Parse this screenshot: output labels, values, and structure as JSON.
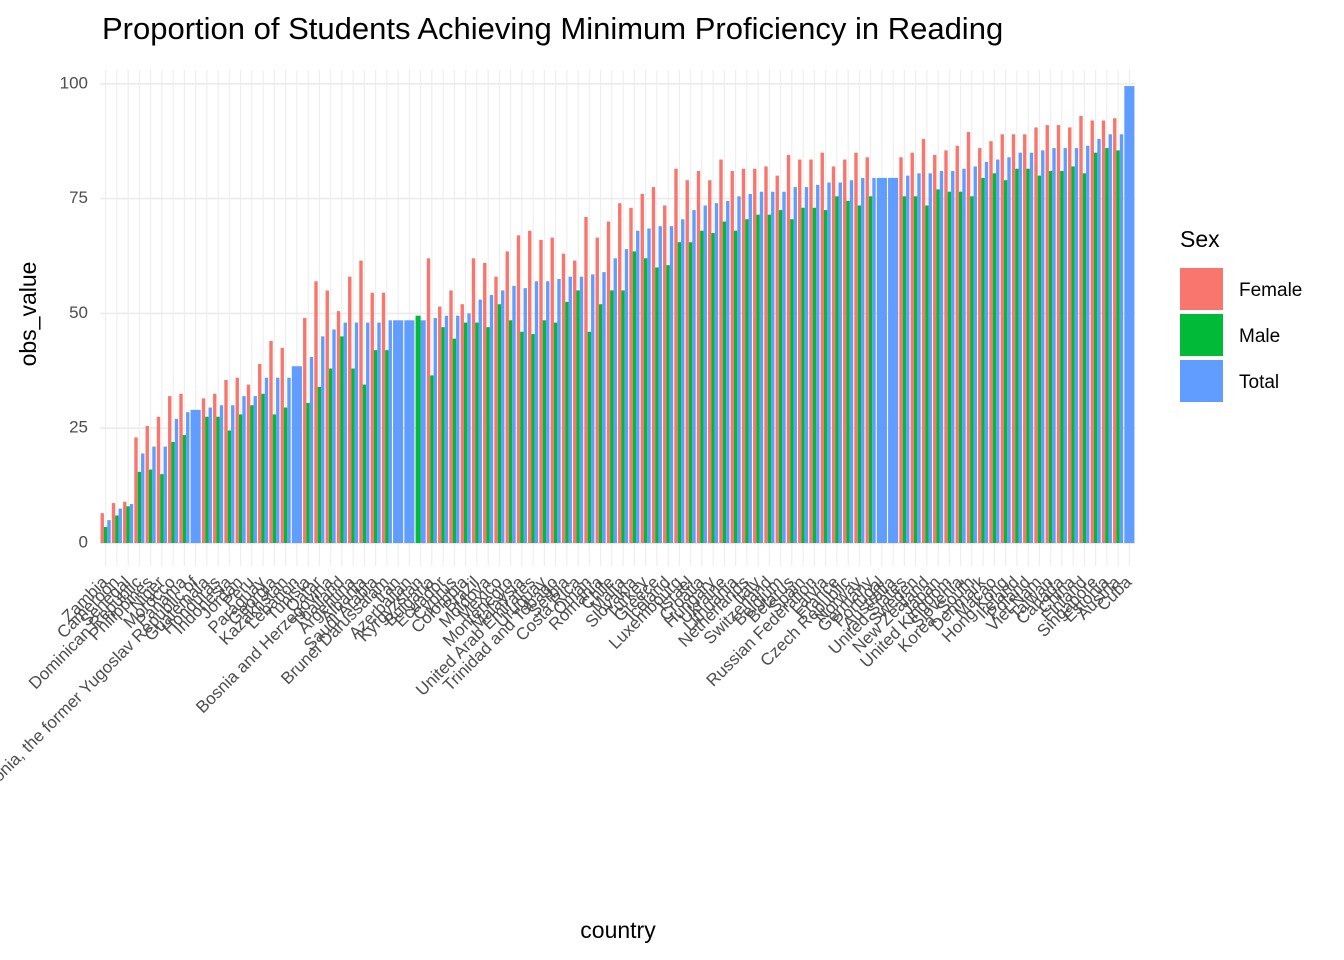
{
  "chart_data": {
    "type": "bar",
    "title": "Proportion of Students Achieving Minimum Proficiency in Reading",
    "x_label": "country",
    "y_label": "obs_value",
    "legend_title": "Sex",
    "categories": [
      "Zambia",
      "Cameroon",
      "Senegal",
      "Dominican Republic",
      "Philippines",
      "Niger",
      "Morocco",
      "Panama",
      "Macedonia, the former Yugoslav Republic of",
      "Guatemala",
      "Honduras",
      "Indonesia",
      "Jordan",
      "Peru",
      "Paraguay",
      "Georgia",
      "Kazakhstan",
      "Lebanon",
      "Tunisia",
      "Qatar",
      "Bosnia and Herzegovina",
      "Thailand",
      "Argentina",
      "Albania",
      "Saudi Arabia",
      "Brunei Darussalam",
      "Iran",
      "Azerbaijan",
      "Kyrgyzstan",
      "Bulgaria",
      "Ecuador",
      "Cyprus",
      "Colombia",
      "Brazil",
      "Moldova",
      "Mexico",
      "Montenegro",
      "Malaysia",
      "United Arab Emirates",
      "Uruguay",
      "Trinidad and Tobago",
      "Serbia",
      "Costa Rica",
      "Oman",
      "Romania",
      "Chile",
      "Malta",
      "Slovakia",
      "Turkey",
      "Greece",
      "Iceland",
      "Luxembourg",
      "Israel",
      "Croatia",
      "Hungary",
      "Ukraine",
      "Lithuania",
      "Netherlands",
      "Italy",
      "Switzerland",
      "Belgium",
      "Belarus",
      "Spain",
      "Russian Federation",
      "Latvia",
      "France",
      "Czech Republic",
      "Norway",
      "Germany",
      "Portugal",
      "Australia",
      "United States",
      "Sweden",
      "New Zealand",
      "Japan",
      "United Kingdom",
      "Slovenia",
      "Korea, South",
      "Denmark",
      "Macao",
      "Hong Kong",
      "Ireland",
      "Poland",
      "Viet Nam",
      "Taiwan",
      "Canada",
      "China",
      "Finland",
      "Singapore",
      "Estonia",
      "Austria",
      "Cuba"
    ],
    "series": [
      {
        "name": "Female",
        "color": "#F8766D",
        "values": [
          6.5,
          8.7,
          9,
          23,
          25.5,
          27.5,
          32,
          32.5,
          null,
          31.5,
          32.5,
          35.5,
          36,
          34.5,
          39,
          44,
          42.5,
          null,
          49,
          57,
          55,
          50.5,
          58,
          61.5,
          54.5,
          54.5,
          null,
          null,
          null,
          62,
          51.5,
          55,
          52,
          62,
          61,
          58,
          63.5,
          67,
          68,
          66,
          66.5,
          63,
          61.5,
          71,
          66.5,
          70,
          74,
          73,
          76,
          77.5,
          73.5,
          81.5,
          79,
          81,
          79,
          83.5,
          81,
          81.5,
          81.5,
          82,
          80,
          84.5,
          83.5,
          83.5,
          85,
          82,
          83.5,
          85,
          84,
          null,
          null,
          84,
          85,
          88,
          84.5,
          85.5,
          86.5,
          89.5,
          86,
          87.5,
          89,
          89,
          89,
          90.5,
          91,
          91,
          90.5,
          93,
          92,
          92,
          92.5,
          null
        ]
      },
      {
        "name": "Male",
        "color": "#00BA38",
        "values": [
          3.5,
          6,
          8,
          15.5,
          16,
          15,
          22,
          23.5,
          null,
          27.5,
          27.5,
          24.5,
          28,
          30,
          32.5,
          28,
          29.5,
          null,
          30.5,
          34,
          38,
          45,
          38,
          34.5,
          42,
          42,
          null,
          null,
          49.5,
          36.5,
          47,
          44.5,
          48,
          48,
          47,
          52,
          48.5,
          46,
          45.5,
          48.5,
          48,
          52.5,
          55,
          46,
          52,
          55,
          55,
          63.5,
          62,
          60,
          60.5,
          65.5,
          65.5,
          68,
          67.5,
          70,
          68,
          70.5,
          71.5,
          71.5,
          72.5,
          70.5,
          73,
          73,
          72.5,
          75.5,
          74.5,
          73.5,
          75.5,
          null,
          null,
          75.5,
          75.5,
          73.5,
          77,
          76.5,
          76.5,
          75.5,
          79.5,
          80.5,
          79,
          81.5,
          81.5,
          80,
          81,
          81,
          82,
          80.5,
          85,
          86,
          85.5,
          null
        ]
      },
      {
        "name": "Total",
        "color": "#619CFF",
        "values": [
          5,
          7.5,
          8.5,
          19.5,
          21,
          21,
          27,
          28.5,
          29,
          29.5,
          30,
          30,
          32,
          32,
          36,
          36,
          36,
          38.5,
          40.5,
          45,
          46.5,
          48,
          48,
          48,
          48,
          48.5,
          48.5,
          48.5,
          48.5,
          49,
          49.5,
          49.5,
          50,
          53,
          54,
          55,
          56,
          55.5,
          57,
          57,
          57.5,
          58,
          58,
          58.5,
          59,
          62,
          64,
          68,
          68.5,
          69,
          69,
          70.5,
          72.5,
          73.5,
          74,
          74.5,
          75.5,
          76,
          76.5,
          76.5,
          76.5,
          77.5,
          77.5,
          78,
          78.5,
          78.5,
          79,
          79.5,
          79.5,
          79.5,
          79.5,
          80,
          80.5,
          80.5,
          81,
          81,
          81.5,
          82,
          83,
          83.5,
          84,
          85,
          85,
          85.5,
          86,
          86,
          86,
          86.5,
          88,
          89,
          89,
          99.5
        ]
      }
    ],
    "ylim": [
      -5,
      103
    ],
    "yticks": [
      0,
      25,
      50,
      75,
      100
    ],
    "grid": true
  }
}
